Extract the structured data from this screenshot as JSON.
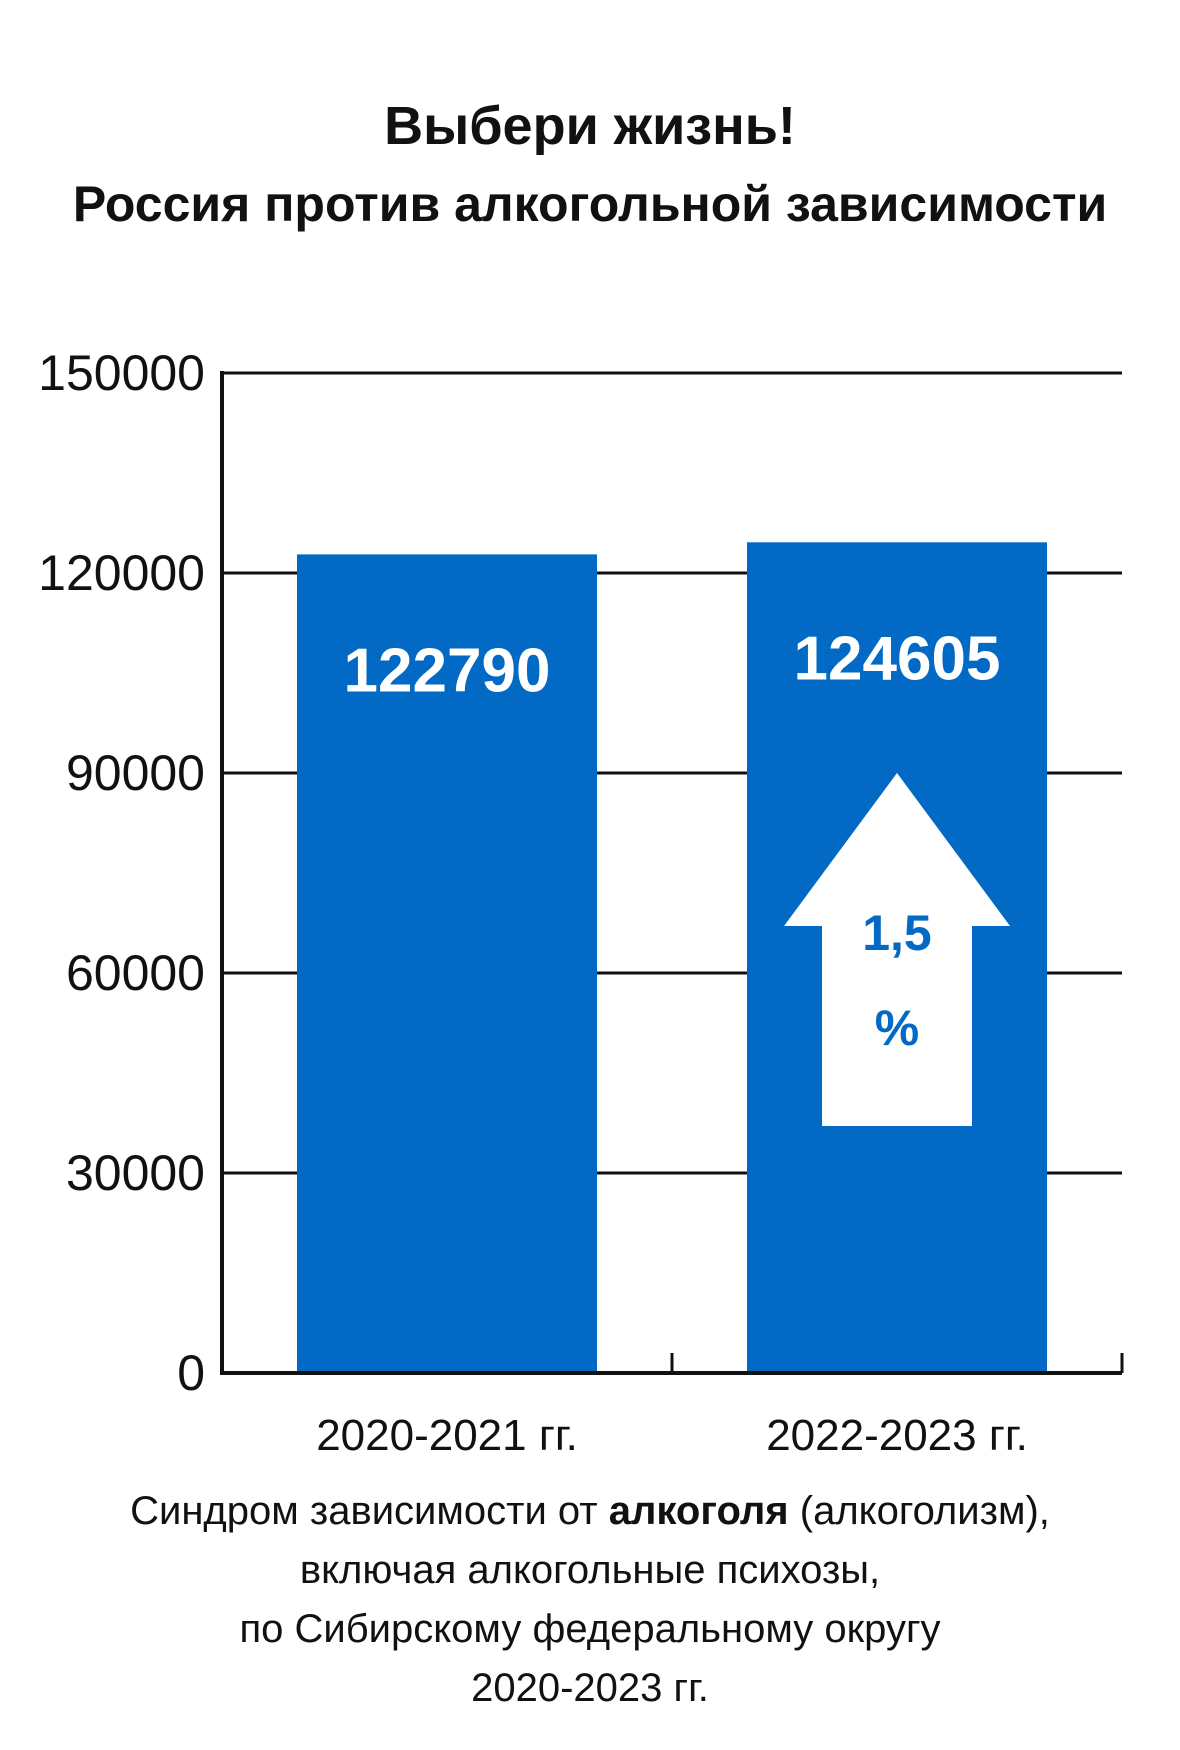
{
  "title": {
    "line1": "Выбери жизнь!",
    "line2": "Россия против алкогольной зависимости"
  },
  "chart_data": {
    "type": "bar",
    "categories": [
      "2020-2021 гг.",
      "2022-2023 гг."
    ],
    "values": [
      122790,
      124605
    ],
    "value_labels": [
      "122790",
      "124605"
    ],
    "ylim": [
      0,
      150000
    ],
    "yticks": [
      0,
      30000,
      60000,
      90000,
      120000,
      150000
    ],
    "ytick_labels": [
      "0",
      "30000",
      "60000",
      "90000",
      "120000",
      "150000"
    ],
    "grid": true,
    "bar_color": "#0269c4",
    "annotation": {
      "arrow": "up",
      "line1": "1,5",
      "line2": "%",
      "color": "#0269c4"
    }
  },
  "caption": {
    "part1": "Синдром зависимости  от ",
    "bold": "алкоголя",
    "part2": " (алкоголизм),",
    "line2": "включая алкогольные психозы,",
    "line3": "по Сибирскому федеральному округу",
    "line4": "2020-2023 гг."
  }
}
